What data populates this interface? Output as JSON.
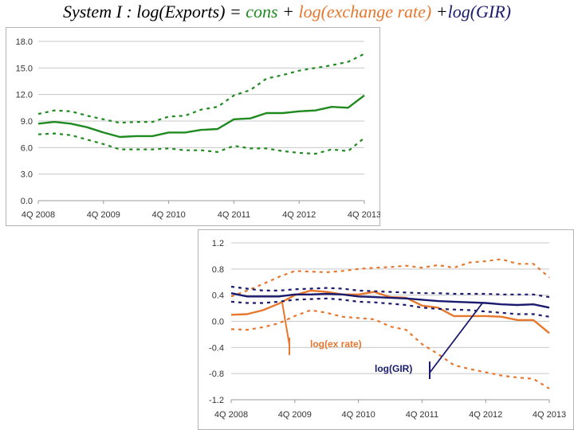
{
  "title": {
    "prefix": "System I : log(Exports) = ",
    "cons": "cons",
    "plus1": " + ",
    "exchange": "log(exchange rate)",
    "plus2": " +",
    "gir": "log(GIR)"
  },
  "colors": {
    "green": "#1f8a1f",
    "orange": "#e8772e",
    "navy": "#1a1a6e",
    "grid": "#c8c8c8",
    "frame": "#b4b4b4"
  },
  "chart_data": [
    {
      "type": "line",
      "title": "",
      "x_tick_labels": [
        "4Q 2008",
        "4Q 2009",
        "4Q 2010",
        "4Q 2011",
        "4Q 2012",
        "4Q 2013"
      ],
      "x_tick_index": [
        0,
        4,
        8,
        12,
        16,
        20
      ],
      "y_ticks": [
        "0.0",
        "3.0",
        "6.0",
        "9.0",
        "12.0",
        "15.0",
        "18.0"
      ],
      "ylim": [
        0,
        18
      ],
      "grid": "horizontal",
      "series": [
        {
          "style": "solid",
          "color": "green",
          "values": [
            8.7,
            8.9,
            8.7,
            8.3,
            7.7,
            7.2,
            7.3,
            7.3,
            7.7,
            7.7,
            8.0,
            8.1,
            9.2,
            9.3,
            9.9,
            9.9,
            10.1,
            10.2,
            10.6,
            10.5,
            11.9
          ]
        },
        {
          "style": "dashed",
          "color": "green",
          "values": [
            9.8,
            10.2,
            10.1,
            9.6,
            9.2,
            8.8,
            8.9,
            8.9,
            9.5,
            9.6,
            10.3,
            10.6,
            11.9,
            12.5,
            13.8,
            14.2,
            14.7,
            15.0,
            15.3,
            15.7,
            16.6
          ]
        },
        {
          "style": "dashed",
          "color": "green",
          "values": [
            7.5,
            7.6,
            7.4,
            6.9,
            6.4,
            5.8,
            5.8,
            5.8,
            5.9,
            5.7,
            5.7,
            5.5,
            6.2,
            5.9,
            5.9,
            5.6,
            5.4,
            5.3,
            5.8,
            5.6,
            7.1
          ]
        }
      ]
    },
    {
      "type": "line",
      "title": "",
      "x_tick_labels": [
        "4Q 2008",
        "4Q 2009",
        "4Q 2010",
        "4Q 2011",
        "4Q 2012",
        "4Q 2013"
      ],
      "x_tick_index": [
        0,
        4,
        8,
        12,
        16,
        20
      ],
      "y_ticks": [
        "-1.2",
        "-0.8",
        "-0.4",
        "0.0",
        "0.4",
        "0.8",
        "1.2"
      ],
      "ylim": [
        -1.2,
        1.2
      ],
      "grid": "horizontal",
      "series": [
        {
          "style": "solid",
          "color": "orange",
          "values": [
            0.1,
            0.11,
            0.17,
            0.27,
            0.4,
            0.47,
            0.45,
            0.41,
            0.41,
            0.45,
            0.37,
            0.36,
            0.24,
            0.21,
            0.08,
            0.08,
            0.08,
            0.07,
            0.02,
            0.02,
            -0.18
          ]
        },
        {
          "style": "dashed",
          "color": "orange",
          "values": [
            0.38,
            0.47,
            0.57,
            0.68,
            0.77,
            0.76,
            0.75,
            0.77,
            0.8,
            0.82,
            0.83,
            0.85,
            0.82,
            0.86,
            0.82,
            0.9,
            0.92,
            0.95,
            0.88,
            0.88,
            0.67
          ]
        },
        {
          "style": "dashed",
          "color": "orange",
          "values": [
            -0.12,
            -0.13,
            -0.09,
            -0.03,
            0.08,
            0.17,
            0.13,
            0.07,
            0.05,
            0.03,
            -0.08,
            -0.13,
            -0.35,
            -0.5,
            -0.67,
            -0.73,
            -0.78,
            -0.83,
            -0.86,
            -0.88,
            -1.03
          ]
        },
        {
          "style": "solid",
          "color": "navy",
          "values": [
            0.43,
            0.38,
            0.38,
            0.38,
            0.41,
            0.41,
            0.42,
            0.41,
            0.38,
            0.37,
            0.36,
            0.35,
            0.33,
            0.31,
            0.3,
            0.29,
            0.28,
            0.26,
            0.25,
            0.26,
            0.21
          ]
        },
        {
          "style": "dashed",
          "color": "navy",
          "values": [
            0.53,
            0.5,
            0.47,
            0.47,
            0.49,
            0.5,
            0.51,
            0.5,
            0.47,
            0.46,
            0.45,
            0.44,
            0.43,
            0.43,
            0.42,
            0.42,
            0.42,
            0.41,
            0.41,
            0.41,
            0.37
          ]
        },
        {
          "style": "dashed",
          "color": "navy",
          "values": [
            0.3,
            0.28,
            0.28,
            0.3,
            0.33,
            0.34,
            0.35,
            0.33,
            0.3,
            0.29,
            0.27,
            0.25,
            0.21,
            0.19,
            0.18,
            0.17,
            0.15,
            0.13,
            0.11,
            0.11,
            0.07
          ]
        }
      ],
      "annotations": [
        {
          "text": "log(ex rate)",
          "color": "orange"
        },
        {
          "text": "log(GIR)",
          "color": "navy"
        }
      ]
    }
  ]
}
